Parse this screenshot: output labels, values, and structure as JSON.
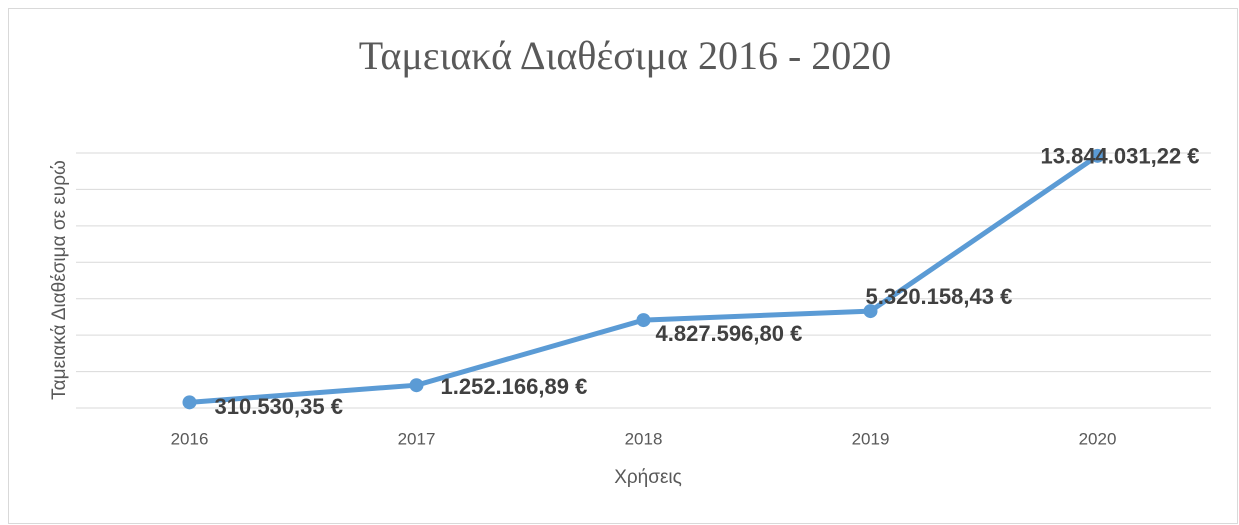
{
  "chart_data": {
    "type": "line",
    "title": "Ταμειακά Διαθέσιμα 2016 - 2020",
    "x_label": "Χρήσεις",
    "y_label": "Ταμειακά Διαθέσιμα σε ευρώ",
    "categories": [
      "2016",
      "2017",
      "2018",
      "2019",
      "2020"
    ],
    "series": [
      {
        "name": "Ταμειακά Διαθέσιμα",
        "color": "#5b9bd5",
        "values": [
          310530.35,
          1252166.89,
          4827596.8,
          5320158.43,
          13844031.22
        ],
        "value_labels": [
          "310.530,35 €",
          "1.252.166,89 €",
          "4.827.596,80 €",
          "5.320.158,43 €",
          "13.844.031,22 €"
        ]
      }
    ],
    "ylim": [
      0,
      14000000
    ],
    "yticks": [
      0,
      2000000,
      4000000,
      6000000,
      8000000,
      10000000,
      12000000,
      14000000
    ],
    "grid": true
  }
}
